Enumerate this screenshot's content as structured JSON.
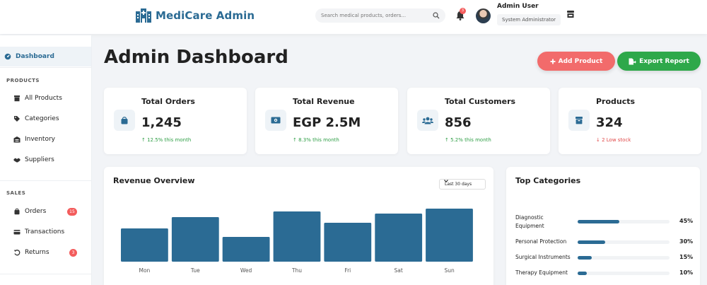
{
  "header": {
    "brand": "MediCare Admin",
    "search_placeholder": "Search medical products, orders...",
    "notification_count": "3",
    "user_name": "Admin User",
    "user_role": "System Administrator"
  },
  "sidebar": {
    "dashboard": "Dashboard",
    "sections": [
      {
        "title": "PRODUCTS",
        "items": [
          {
            "label": "All Products",
            "icon": "box-icon"
          },
          {
            "label": "Categories",
            "icon": "tags-icon"
          },
          {
            "label": "Inventory",
            "icon": "warehouse-icon"
          },
          {
            "label": "Suppliers",
            "icon": "handshake-icon"
          }
        ]
      },
      {
        "title": "SALES",
        "items": [
          {
            "label": "Orders",
            "icon": "bag-icon",
            "badge": "15"
          },
          {
            "label": "Transactions",
            "icon": "card-icon"
          },
          {
            "label": "Returns",
            "icon": "undo-icon",
            "badge": "3"
          }
        ]
      }
    ]
  },
  "page": {
    "title": "Admin Dashboard",
    "add_product": "Add Product",
    "export_report": "Export Report"
  },
  "stats": [
    {
      "label": "Total Orders",
      "value": "1,245",
      "change": "12.5% this month",
      "trend": "up",
      "icon": "shopping-bag-icon"
    },
    {
      "label": "Total Revenue",
      "value": "EGP 2.5M",
      "change": "8.3% this month",
      "trend": "up",
      "icon": "money-icon"
    },
    {
      "label": "Total Customers",
      "value": "856",
      "change": "5.2% this month",
      "trend": "up",
      "icon": "users-icon"
    },
    {
      "label": "Products",
      "value": "324",
      "change": "2 Low stock",
      "trend": "down",
      "icon": "box-icon"
    }
  ],
  "revenue": {
    "title": "Revenue Overview",
    "range": "Last 30 days"
  },
  "chart_data": {
    "type": "bar",
    "title": "Revenue Overview",
    "categories": [
      "Mon",
      "Tue",
      "Wed",
      "Thu",
      "Fri",
      "Sat",
      "Sun"
    ],
    "values": [
      47,
      63,
      35,
      71,
      55,
      68,
      75
    ],
    "ylim": [
      0,
      100
    ],
    "grid": false,
    "color": "#2b6b94"
  },
  "top_categories": {
    "title": "Top Categories",
    "items": [
      {
        "name": "Diagnostic Equipment",
        "percent": 45,
        "label": "45%"
      },
      {
        "name": "Personal Protection",
        "percent": 30,
        "label": "30%"
      },
      {
        "name": "Surgical Instruments",
        "percent": 15,
        "label": "15%"
      },
      {
        "name": "Therapy Equipment",
        "percent": 10,
        "label": "10%"
      }
    ]
  },
  "colors": {
    "primary": "#2b6b94",
    "add_button": "#f26b6b",
    "export_button": "#2ea84a",
    "up": "#2e9e45",
    "down": "#e04848"
  }
}
